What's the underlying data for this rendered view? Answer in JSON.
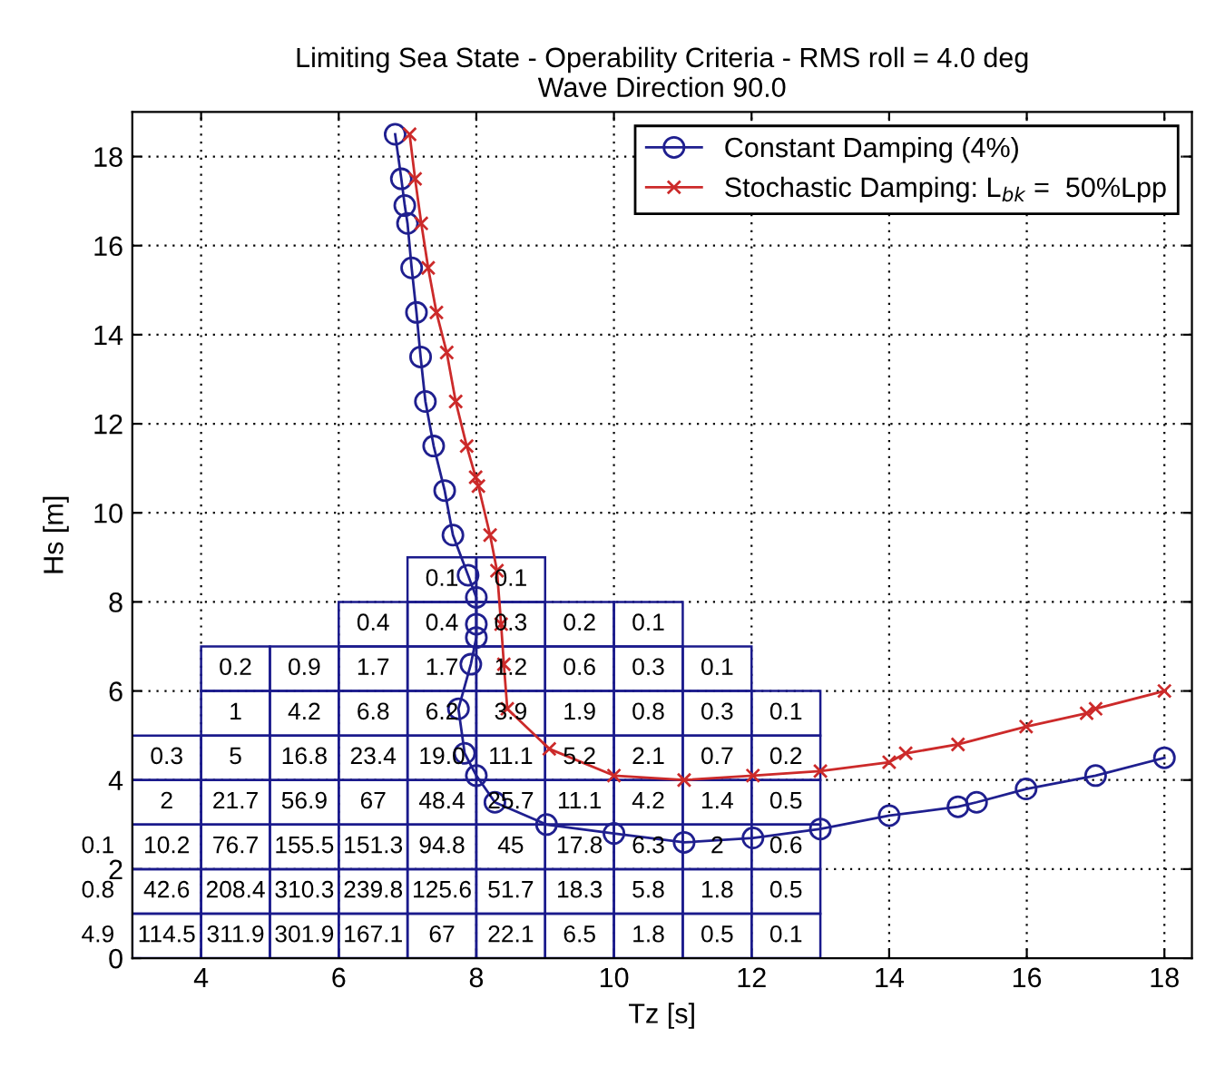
{
  "chart_data": {
    "type": "line",
    "title": "Limiting Sea State - Operability Criteria - RMS roll = 4.0 deg\nWave Direction 90.0",
    "xlabel": "Tz [s]",
    "ylabel": "Hs [m]",
    "xlim": [
      3,
      18.4
    ],
    "ylim": [
      0,
      19
    ],
    "xticks": [
      4,
      6,
      8,
      10,
      12,
      14,
      16,
      18
    ],
    "yticks": [
      0,
      2,
      4,
      6,
      8,
      10,
      12,
      14,
      16,
      18
    ],
    "grid": true,
    "legend": "top right",
    "line_style": "solid",
    "series": [
      {
        "name": "Constant Damping (4%)",
        "color": "#1f1f8f",
        "marker": "circle",
        "x": [
          6.82,
          6.91,
          6.96,
          7.0,
          7.06,
          7.13,
          7.19,
          7.26,
          7.38,
          7.54,
          7.66,
          7.88,
          8.0,
          8.0,
          8.0,
          7.92,
          7.74,
          7.83,
          8.0,
          8.27,
          9.02,
          10.0,
          11.02,
          12.02,
          13.0,
          14.0,
          15.0,
          15.27,
          15.99,
          17.0,
          18.0
        ],
        "values": [
          18.5,
          17.5,
          16.9,
          16.5,
          15.5,
          14.5,
          13.5,
          12.5,
          11.5,
          10.5,
          9.5,
          8.6,
          8.1,
          7.5,
          7.2,
          6.6,
          5.6,
          4.6,
          4.1,
          3.5,
          3.0,
          2.8,
          2.6,
          2.7,
          2.9,
          3.2,
          3.4,
          3.5,
          3.8,
          4.1,
          4.5
        ]
      },
      {
        "name": "Stochastic Damping: L$_{bk}$ =  50%Lpp",
        "color": "#cc2a2a",
        "marker": "cross",
        "x": [
          7.03,
          7.11,
          7.2,
          7.3,
          7.42,
          7.57,
          7.7,
          7.86,
          7.99,
          8.03,
          8.2,
          8.3,
          8.36,
          8.4,
          8.45,
          9.06,
          10.0,
          11.02,
          12.02,
          13.0,
          14.0,
          14.24,
          15.0,
          15.99,
          16.87,
          17.0,
          18.0
        ],
        "values": [
          18.5,
          17.5,
          16.5,
          15.5,
          14.5,
          13.6,
          12.5,
          11.5,
          10.8,
          10.6,
          9.5,
          8.7,
          7.5,
          6.6,
          5.6,
          4.7,
          4.1,
          4.0,
          4.1,
          4.2,
          4.4,
          4.6,
          4.8,
          5.2,
          5.5,
          5.6,
          6.0
        ]
      }
    ],
    "annotations": [
      {
        "text": "0.1",
        "x": 7.5,
        "y": 8.5
      },
      {
        "text": "0.1",
        "x": 8.5,
        "y": 8.5
      },
      {
        "text": "0.4",
        "x": 6.5,
        "y": 7.5
      },
      {
        "text": "0.4",
        "x": 7.5,
        "y": 7.5
      },
      {
        "text": "0.3",
        "x": 8.5,
        "y": 7.5
      },
      {
        "text": "0.2",
        "x": 9.5,
        "y": 7.5
      },
      {
        "text": "0.1",
        "x": 10.5,
        "y": 7.5
      },
      {
        "text": "0.2",
        "x": 4.5,
        "y": 6.5
      },
      {
        "text": "0.9",
        "x": 5.5,
        "y": 6.5
      },
      {
        "text": "1.7",
        "x": 6.5,
        "y": 6.5
      },
      {
        "text": "1.7",
        "x": 7.5,
        "y": 6.5
      },
      {
        "text": "1.2",
        "x": 8.5,
        "y": 6.5
      },
      {
        "text": "0.6",
        "x": 9.5,
        "y": 6.5
      },
      {
        "text": "0.3",
        "x": 10.5,
        "y": 6.5
      },
      {
        "text": "0.1",
        "x": 11.5,
        "y": 6.5
      },
      {
        "text": "1",
        "x": 4.5,
        "y": 5.5
      },
      {
        "text": "4.2",
        "x": 5.5,
        "y": 5.5
      },
      {
        "text": "6.8",
        "x": 6.5,
        "y": 5.5
      },
      {
        "text": "6.2",
        "x": 7.5,
        "y": 5.5
      },
      {
        "text": "3.9",
        "x": 8.5,
        "y": 5.5
      },
      {
        "text": "1.9",
        "x": 9.5,
        "y": 5.5
      },
      {
        "text": "0.8",
        "x": 10.5,
        "y": 5.5
      },
      {
        "text": "0.3",
        "x": 11.5,
        "y": 5.5
      },
      {
        "text": "0.1",
        "x": 12.5,
        "y": 5.5
      },
      {
        "text": "0.3",
        "x": 3.5,
        "y": 4.5
      },
      {
        "text": "5",
        "x": 4.5,
        "y": 4.5
      },
      {
        "text": "16.8",
        "x": 5.5,
        "y": 4.5
      },
      {
        "text": "23.4",
        "x": 6.5,
        "y": 4.5
      },
      {
        "text": "19.0",
        "x": 7.5,
        "y": 4.5
      },
      {
        "text": "11.1",
        "x": 8.5,
        "y": 4.5
      },
      {
        "text": "5.2",
        "x": 9.5,
        "y": 4.5
      },
      {
        "text": "2.1",
        "x": 10.5,
        "y": 4.5
      },
      {
        "text": "0.7",
        "x": 11.5,
        "y": 4.5
      },
      {
        "text": "0.2",
        "x": 12.5,
        "y": 4.5
      },
      {
        "text": "2",
        "x": 3.5,
        "y": 3.5
      },
      {
        "text": "21.7",
        "x": 4.5,
        "y": 3.5
      },
      {
        "text": "56.9",
        "x": 5.5,
        "y": 3.5
      },
      {
        "text": "67",
        "x": 6.5,
        "y": 3.5
      },
      {
        "text": "48.4",
        "x": 7.5,
        "y": 3.5
      },
      {
        "text": "25.7",
        "x": 8.5,
        "y": 3.5
      },
      {
        "text": "11.1",
        "x": 9.5,
        "y": 3.5
      },
      {
        "text": "4.2",
        "x": 10.5,
        "y": 3.5
      },
      {
        "text": "1.4",
        "x": 11.5,
        "y": 3.5
      },
      {
        "text": "0.5",
        "x": 12.5,
        "y": 3.5
      },
      {
        "text": "0.1",
        "x": 2.5,
        "y": 2.5
      },
      {
        "text": "10.2",
        "x": 3.5,
        "y": 2.5
      },
      {
        "text": "76.7",
        "x": 4.5,
        "y": 2.5
      },
      {
        "text": "155.5",
        "x": 5.5,
        "y": 2.5
      },
      {
        "text": "151.3",
        "x": 6.5,
        "y": 2.5
      },
      {
        "text": "94.8",
        "x": 7.5,
        "y": 2.5
      },
      {
        "text": "45",
        "x": 8.5,
        "y": 2.5
      },
      {
        "text": "17.8",
        "x": 9.5,
        "y": 2.5
      },
      {
        "text": "6.3",
        "x": 10.5,
        "y": 2.5
      },
      {
        "text": "2",
        "x": 11.5,
        "y": 2.5
      },
      {
        "text": "0.6",
        "x": 12.5,
        "y": 2.5
      },
      {
        "text": "0.8",
        "x": 2.5,
        "y": 1.5
      },
      {
        "text": "42.6",
        "x": 3.5,
        "y": 1.5
      },
      {
        "text": "208.4",
        "x": 4.5,
        "y": 1.5
      },
      {
        "text": "310.3",
        "x": 5.5,
        "y": 1.5
      },
      {
        "text": "239.8",
        "x": 6.5,
        "y": 1.5
      },
      {
        "text": "125.6",
        "x": 7.5,
        "y": 1.5
      },
      {
        "text": "51.7",
        "x": 8.5,
        "y": 1.5
      },
      {
        "text": "18.3",
        "x": 9.5,
        "y": 1.5
      },
      {
        "text": "5.8",
        "x": 10.5,
        "y": 1.5
      },
      {
        "text": "1.8",
        "x": 11.5,
        "y": 1.5
      },
      {
        "text": "0.5",
        "x": 12.5,
        "y": 1.5
      },
      {
        "text": "4.9",
        "x": 2.5,
        "y": 0.5
      },
      {
        "text": "114.5",
        "x": 3.5,
        "y": 0.5
      },
      {
        "text": "311.9",
        "x": 4.5,
        "y": 0.5
      },
      {
        "text": "301.9",
        "x": 5.5,
        "y": 0.5
      },
      {
        "text": "167.1",
        "x": 6.5,
        "y": 0.5
      },
      {
        "text": "67",
        "x": 7.5,
        "y": 0.5
      },
      {
        "text": "22.1",
        "x": 8.5,
        "y": 0.5
      },
      {
        "text": "6.5",
        "x": 9.5,
        "y": 0.5
      },
      {
        "text": "1.8",
        "x": 10.5,
        "y": 0.5
      },
      {
        "text": "0.5",
        "x": 11.5,
        "y": 0.5
      },
      {
        "text": "0.1",
        "x": 12.5,
        "y": 0.5
      }
    ]
  }
}
